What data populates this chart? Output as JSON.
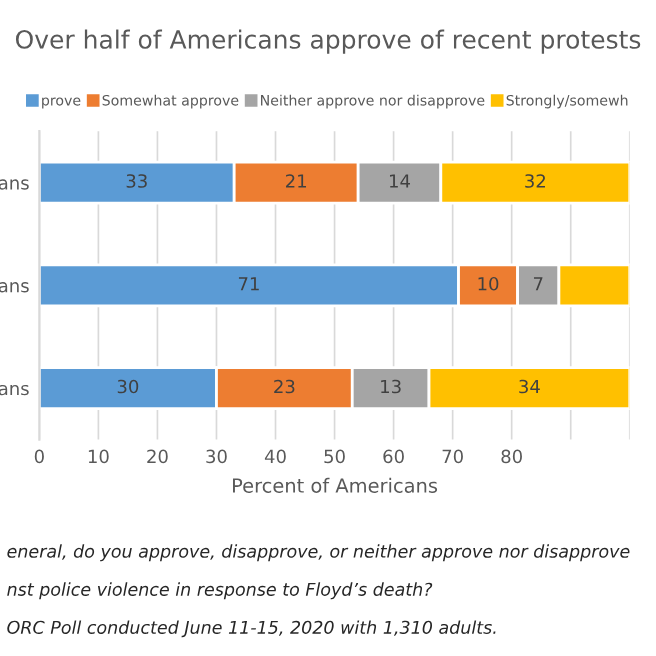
{
  "chart_data": {
    "type": "bar",
    "orientation": "horizontal",
    "stacked": true,
    "title": "Over half of Americans approve of recent protests",
    "xlabel": "Percent of Americans",
    "categories": [
      "ans",
      "ans",
      "ans"
    ],
    "series": [
      {
        "name": "prove",
        "color": "#5b9bd5",
        "values": [
          33,
          71,
          30
        ],
        "value_labels": [
          "33",
          "71",
          "30"
        ]
      },
      {
        "name": "Somewhat approve",
        "color": "#ed7d31",
        "values": [
          21,
          10,
          23
        ],
        "value_labels": [
          "21",
          "10",
          "23"
        ]
      },
      {
        "name": "Neither approve nor disapprove",
        "color": "#a5a5a5",
        "values": [
          14,
          7,
          13
        ],
        "value_labels": [
          "14",
          "7",
          "13"
        ]
      },
      {
        "name": "Strongly/somewh",
        "color": "#ffc000",
        "values": [
          32,
          12,
          34
        ],
        "value_labels": [
          "32",
          null,
          "34"
        ]
      }
    ],
    "xlim": [
      0,
      100
    ],
    "xticks": [
      0,
      10,
      20,
      30,
      40,
      50,
      60,
      70,
      80,
      {
        "value": 90,
        "label": null
      },
      {
        "value": 100,
        "label": null
      }
    ],
    "grid": "x",
    "legend": "top",
    "annotations": [
      "eneral, do you approve, disapprove, or neither approve nor disapprove",
      "nst police violence in response to Floyd’s death?",
      "ORC Poll conducted June 11-15, 2020 with 1,310 adults."
    ]
  }
}
